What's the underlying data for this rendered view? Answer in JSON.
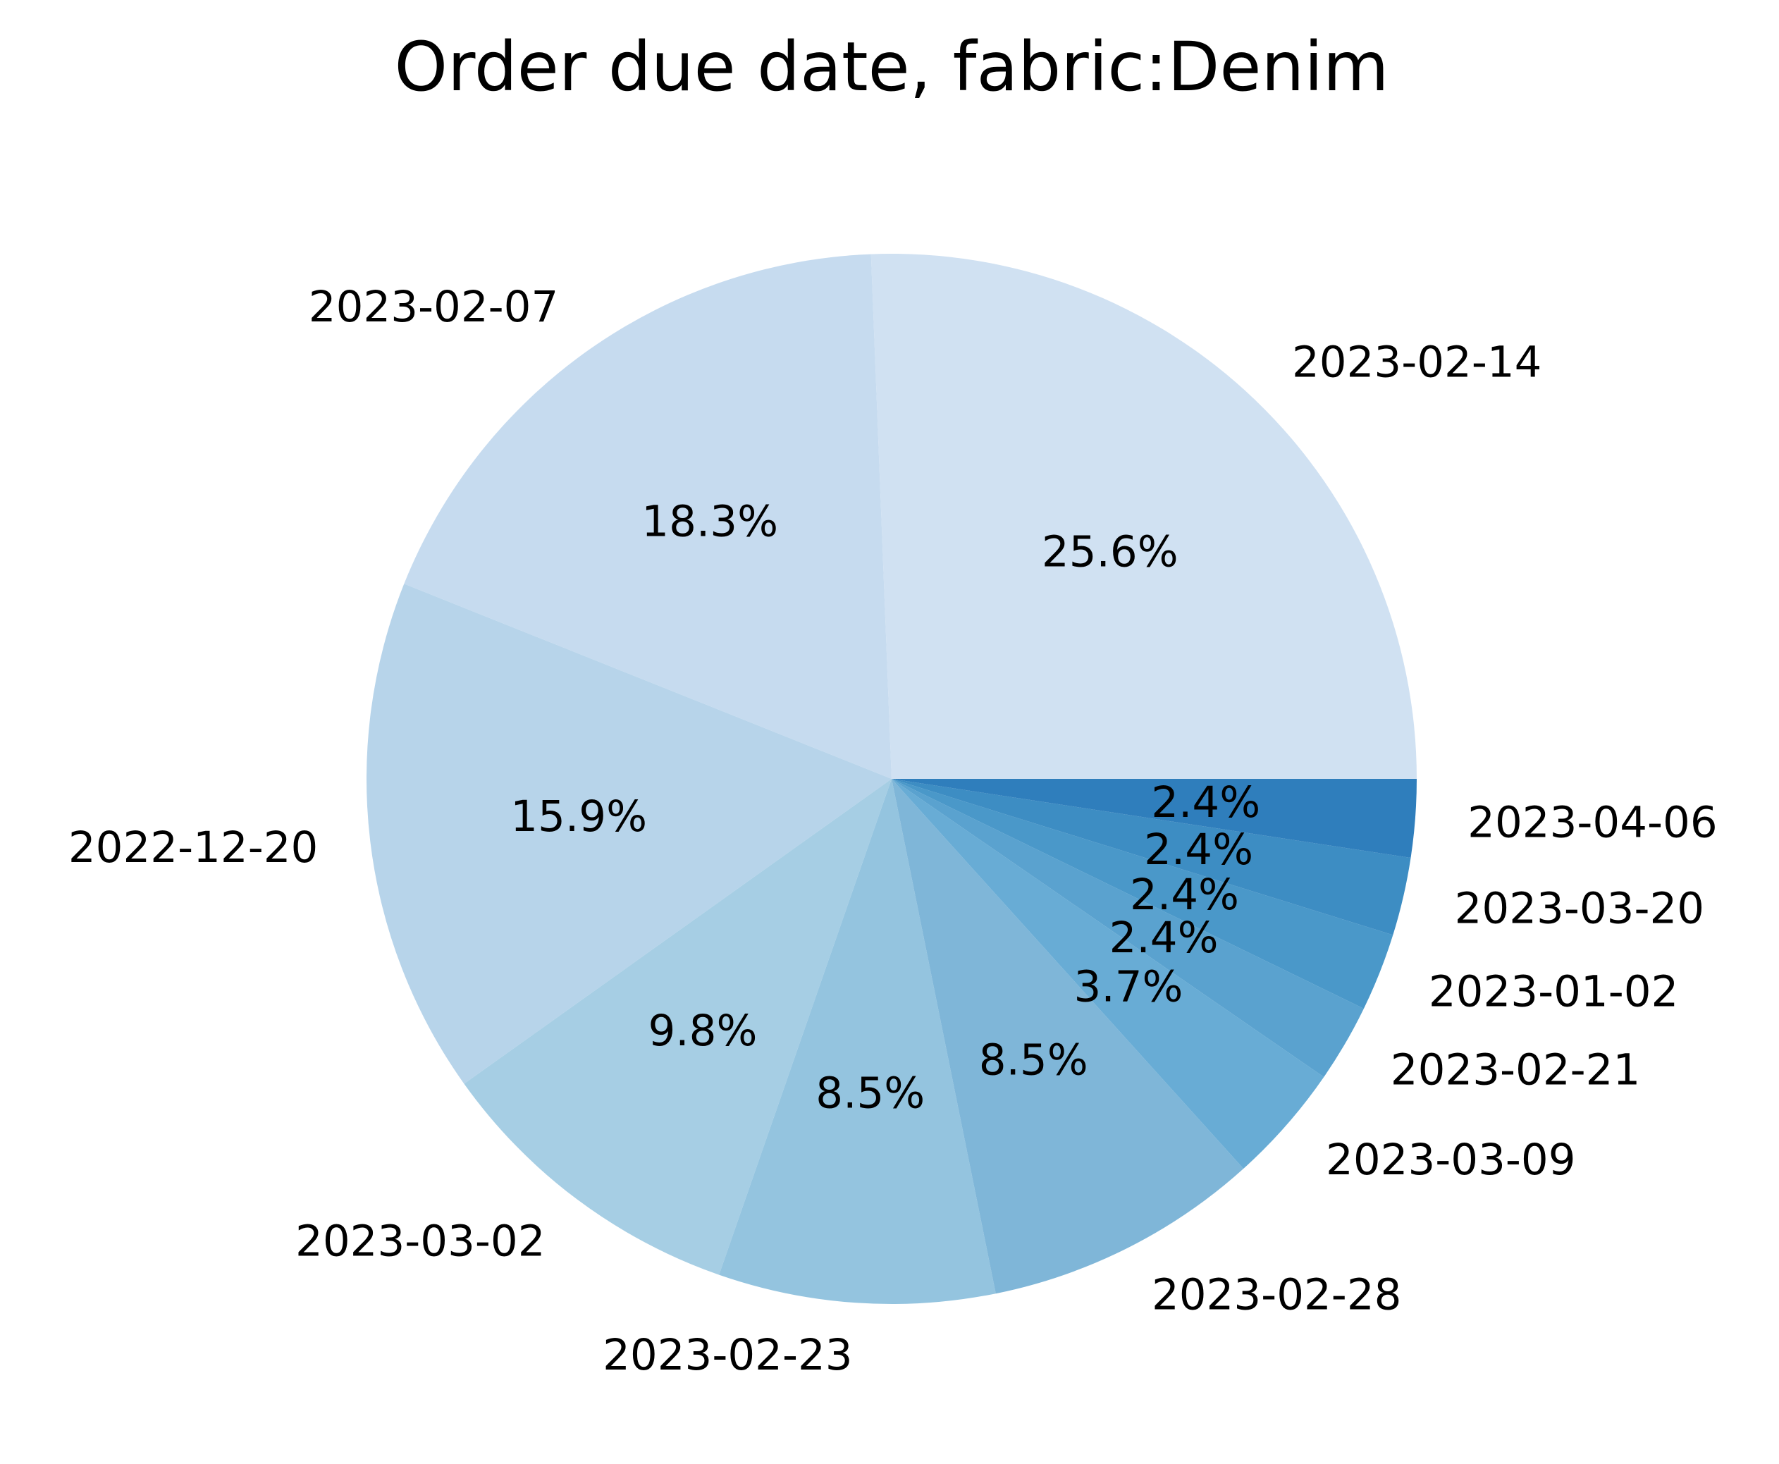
{
  "chart_data": {
    "type": "pie",
    "title": "Order due date, fabric:Denim",
    "start_angle_deg": 0,
    "direction": "counterclockwise",
    "slices": [
      {
        "label": "2023-02-14",
        "value": 25.6,
        "pct_text": "25.6%",
        "color": "#d0e1f2"
      },
      {
        "label": "2023-02-07",
        "value": 18.3,
        "pct_text": "18.3%",
        "color": "#c6dbef"
      },
      {
        "label": "2022-12-20",
        "value": 15.9,
        "pct_text": "15.9%",
        "color": "#b7d4ea"
      },
      {
        "label": "2023-03-02",
        "value": 9.8,
        "pct_text": "9.8%",
        "color": "#a6cee4"
      },
      {
        "label": "2023-02-23",
        "value": 8.5,
        "pct_text": "8.5%",
        "color": "#94c4df"
      },
      {
        "label": "2023-02-28",
        "value": 8.5,
        "pct_text": "8.5%",
        "color": "#7fb6d8"
      },
      {
        "label": "2023-03-09",
        "value": 3.7,
        "pct_text": "3.7%",
        "color": "#68acd5"
      },
      {
        "label": "2023-02-21",
        "value": 2.4,
        "pct_text": "2.4%",
        "color": "#5aa2cf"
      },
      {
        "label": "2023-01-02",
        "value": 2.4,
        "pct_text": "2.4%",
        "color": "#4a98c9"
      },
      {
        "label": "2023-03-20",
        "value": 2.4,
        "pct_text": "2.4%",
        "color": "#3d8dc3"
      },
      {
        "label": "2023-04-06",
        "value": 2.4,
        "pct_text": "2.4%",
        "color": "#2f7ebc"
      }
    ]
  }
}
